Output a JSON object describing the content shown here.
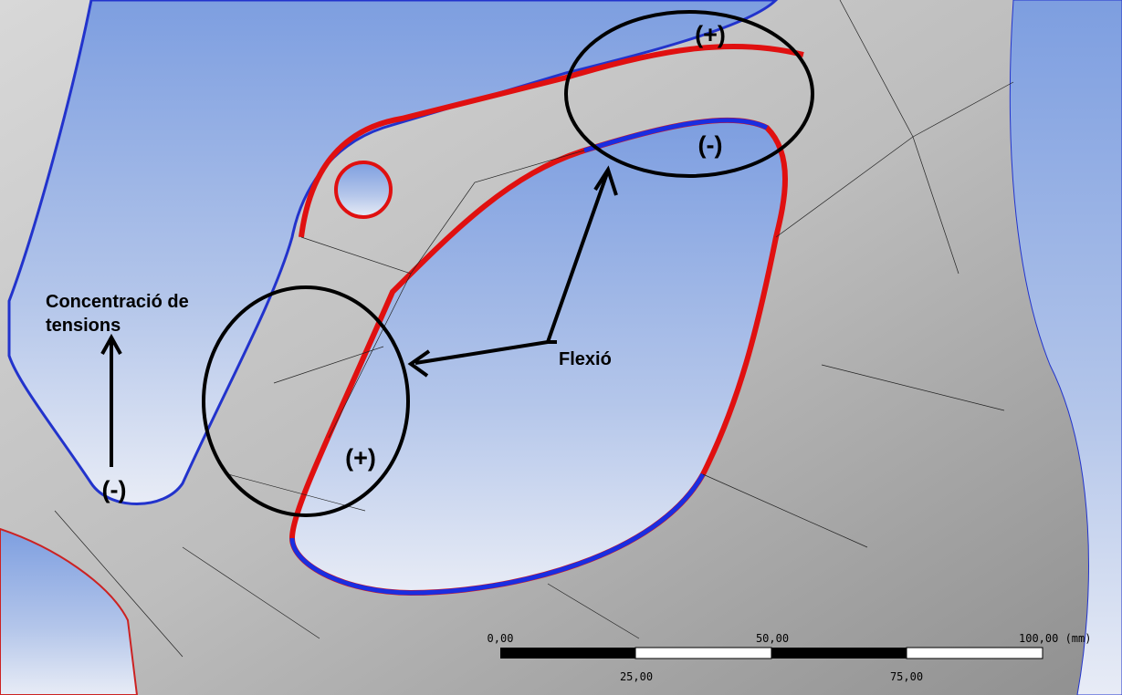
{
  "annotations": {
    "top_plus": "(+)",
    "top_minus": "(-)",
    "middle_plus": "(+)",
    "left_minus": "(-)",
    "flexion": "Flexió",
    "concentration": [
      "Concentració de",
      "tensions"
    ]
  },
  "scale_bar": {
    "top_labels": [
      "0,00",
      "50,00",
      "100,00 (mm)"
    ],
    "bottom_labels": [
      "25,00",
      "75,00"
    ]
  }
}
